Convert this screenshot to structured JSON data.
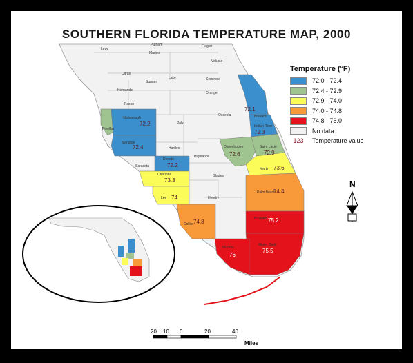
{
  "title": "SOUTHERN FLORIDA TEMPERATURE MAP, 2000",
  "legend": {
    "title": "Temperature (°F)",
    "classes": [
      {
        "label": "72.0 - 72.4",
        "color": "#3b8fcc"
      },
      {
        "label": "72.4 - 72.9",
        "color": "#9fc48f"
      },
      {
        "label": "72.9 - 74.0",
        "color": "#fbfb5a"
      },
      {
        "label": "74.0 - 74.8",
        "color": "#f89a3a"
      },
      {
        "label": "74.8 - 76.0",
        "color": "#e4121a"
      },
      {
        "label": "No data",
        "color": "#f2f2f2"
      }
    ],
    "sample_value": "123",
    "sample_label": "Temperature value"
  },
  "counties_no_data": [
    "Levy",
    "Putnam",
    "Marion",
    "Flagler",
    "Volusia",
    "Citrus",
    "Sumter",
    "Lake",
    "Hernando",
    "Seminole",
    "Orange",
    "Pasco",
    "Polk",
    "Osceola",
    "Hardee",
    "Sarasota",
    "Highlands",
    "Glades",
    "Hendry"
  ],
  "counties_with_data": [
    {
      "name": "Hillsborough",
      "value": "72.2",
      "color": "#3b8fcc"
    },
    {
      "name": "Pinellas",
      "value": "",
      "color": "#9fc48f"
    },
    {
      "name": "Manatee",
      "value": "72.4",
      "color": "#3b8fcc"
    },
    {
      "name": "Desoto",
      "value": "72.2",
      "color": "#3b8fcc"
    },
    {
      "name": "Brevard",
      "value": "72.1",
      "color": "#3b8fcc"
    },
    {
      "name": "Indian River",
      "value": "72.3",
      "color": "#3b8fcc"
    },
    {
      "name": "Okeechobee",
      "value": "72.6",
      "color": "#9fc48f"
    },
    {
      "name": "Saint Lucie",
      "value": "72.9",
      "color": "#9fc48f"
    },
    {
      "name": "Martin",
      "value": "73.6",
      "color": "#fbfb5a"
    },
    {
      "name": "Charlotte",
      "value": "73.3",
      "color": "#fbfb5a"
    },
    {
      "name": "Lee",
      "value": "74",
      "color": "#fbfb5a"
    },
    {
      "name": "Palm Beach",
      "value": "74.4",
      "color": "#f89a3a"
    },
    {
      "name": "Collier",
      "value": "74.8",
      "color": "#f89a3a"
    },
    {
      "name": "Broward",
      "value": "75.2",
      "color": "#e4121a"
    },
    {
      "name": "Monroe",
      "value": "76",
      "color": "#e4121a"
    },
    {
      "name": "Miami Dade",
      "value": "75.5",
      "color": "#e4121a"
    }
  ],
  "north_arrow": "N",
  "scale": {
    "ticks": [
      "20",
      "10",
      "0",
      "20",
      "40"
    ],
    "unit": "Miles"
  }
}
